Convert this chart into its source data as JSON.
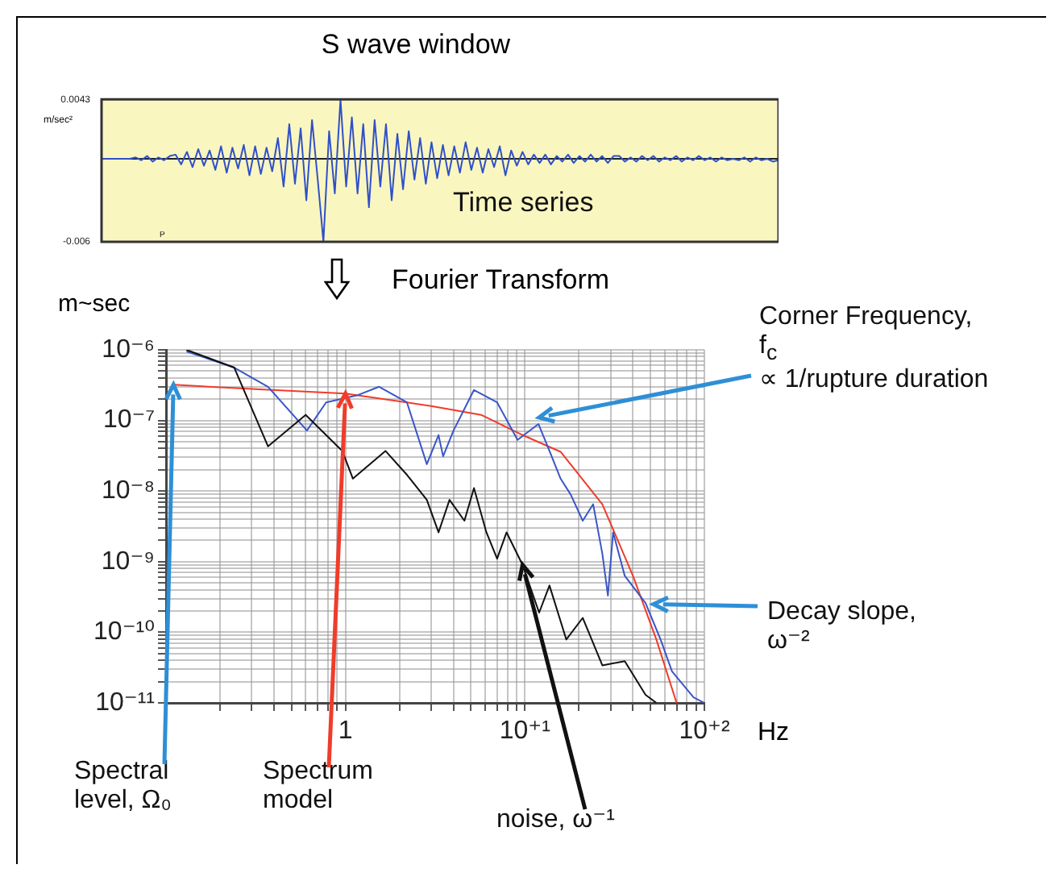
{
  "chart_data": [
    {
      "type": "line",
      "title": "S wave window",
      "ylabel": "m/sec²",
      "categories": [
        null,
        null,
        null,
        null,
        null,
        null,
        null,
        null,
        null,
        null,
        null,
        null,
        null,
        null,
        null,
        null,
        null,
        null,
        null,
        null,
        null,
        null,
        null,
        null,
        null,
        null,
        null,
        null,
        null,
        null,
        null,
        null,
        null,
        null,
        null,
        null,
        null,
        null,
        null,
        null,
        null,
        null,
        null,
        null,
        null,
        null,
        null,
        null,
        null,
        null,
        null,
        null,
        null,
        null,
        null,
        null,
        null,
        null,
        null,
        null,
        null,
        null,
        null,
        null,
        null,
        null,
        null,
        null,
        null,
        null,
        null,
        null,
        null,
        null,
        null,
        null,
        null,
        null,
        null,
        null,
        null,
        null,
        null,
        null,
        null,
        null,
        null,
        null,
        null,
        null,
        null,
        null,
        null,
        null,
        null,
        null,
        null,
        null,
        null,
        null,
        null,
        null,
        null,
        null,
        null,
        null,
        null,
        null,
        null,
        null,
        null,
        null,
        null,
        null,
        null,
        null,
        null,
        null,
        null,
        null
      ],
      "series": [
        {
          "color": "#3050c8",
          "values": [
            0,
            0,
            0,
            0,
            0,
            0,
            0.0001,
            -0.0001,
            0.0002,
            -0.0002,
            0.0001,
            -0.0001,
            0.0002,
            0.0003,
            -0.0004,
            0.0005,
            -0.0006,
            0.0007,
            -0.0005,
            0.0006,
            -0.0008,
            0.0009,
            -0.001,
            0.0008,
            -0.0007,
            0.001,
            -0.0012,
            0.0009,
            -0.0011,
            0.0008,
            -0.0009,
            0.0015,
            -0.002,
            0.0025,
            -0.0018,
            0.0022,
            -0.003,
            0.0028,
            -0.0015,
            -0.006,
            0.002,
            -0.0025,
            0.0043,
            -0.002,
            0.003,
            -0.0025,
            0.0025,
            -0.0035,
            0.0028,
            -0.002,
            0.0025,
            -0.003,
            0.0018,
            -0.0022,
            0.002,
            -0.0015,
            0.0015,
            -0.0018,
            0.0012,
            -0.0014,
            0.001,
            -0.0012,
            0.0009,
            -0.001,
            0.0012,
            -0.0008,
            0.0008,
            -0.001,
            0.0007,
            -0.0006,
            0.0009,
            -0.0012,
            0.0006,
            -0.0005,
            0.0005,
            -0.0004,
            0.0003,
            -0.0003,
            0.0003,
            -0.0004,
            0.0002,
            -0.0002,
            0.0003,
            -0.0003,
            0.0002,
            -0.0002,
            0.0003,
            -0.0002,
            0.0002,
            -0.0003,
            0.0002,
            0.0002,
            -0.0002,
            0.0001,
            -0.0002,
            0.0002,
            -0.0001,
            0.0002,
            -0.0002,
            0.0001,
            -0.0001,
            0.0002,
            -0.0002,
            0.0001,
            -0.0001,
            0.0002,
            -0.0001,
            0.0001,
            -0.0002,
            0.0001,
            -0.0001,
            0,
            -0.0001,
            0.0001,
            -0.0002,
            0.0001,
            -0.0001,
            0,
            -0.0002,
            -0.0001
          ]
        }
      ],
      "ylim": [
        -0.006,
        0.0043
      ],
      "yticks": [
        -0.006,
        0.0043
      ],
      "marker": "none",
      "line_style": "solid",
      "grid": false,
      "legend": false,
      "tick_labels": "y",
      "ref_lines": [
        {
          "axis": "y",
          "value": 0,
          "color": "#202020"
        }
      ],
      "annotations": [
        "Time series",
        "P"
      ]
    },
    {
      "type": "line",
      "title": "Fourier Transform",
      "ylabel": "m~sec",
      "xlabel": "Hz",
      "log": "xy",
      "grid": true,
      "legend": false,
      "marker": "none",
      "line_style": "solid",
      "xlim": [
        0.1,
        100
      ],
      "ylim": [
        1e-11,
        1e-06
      ],
      "xticks": [
        {
          "value": 0.2,
          "label": null
        },
        {
          "value": 0.3,
          "label": null
        },
        {
          "value": 0.4,
          "label": null
        },
        {
          "value": 0.5,
          "label": null
        },
        {
          "value": 0.6,
          "label": null
        },
        {
          "value": 0.7,
          "label": null
        },
        {
          "value": 0.8,
          "label": null
        },
        {
          "value": 0.9,
          "label": null
        },
        1,
        {
          "value": 2,
          "label": null
        },
        {
          "value": 3,
          "label": null
        },
        {
          "value": 4,
          "label": null
        },
        {
          "value": 5,
          "label": null
        },
        {
          "value": 6,
          "label": null
        },
        {
          "value": 7,
          "label": null
        },
        {
          "value": 8,
          "label": null
        },
        {
          "value": 9,
          "label": null
        },
        {
          "value": 10,
          "label": "10⁺¹"
        },
        {
          "value": 20,
          "label": null
        },
        {
          "value": 30,
          "label": null
        },
        {
          "value": 40,
          "label": null
        },
        {
          "value": 50,
          "label": null
        },
        {
          "value": 60,
          "label": null
        },
        {
          "value": 70,
          "label": null
        },
        {
          "value": 80,
          "label": null
        },
        {
          "value": 90,
          "label": null
        },
        {
          "value": 100,
          "label": "10⁺²"
        }
      ],
      "yticks": [
        {
          "value": 1e-11,
          "label": "10⁻¹¹"
        },
        {
          "value": 2e-11,
          "label": null
        },
        {
          "value": 3e-11,
          "label": null
        },
        {
          "value": 4e-11,
          "label": null
        },
        {
          "value": 5e-11,
          "label": null
        },
        {
          "value": 6e-11,
          "label": null
        },
        {
          "value": 7e-11,
          "label": null
        },
        {
          "value": 8e-11,
          "label": null
        },
        {
          "value": 9e-11,
          "label": null
        },
        {
          "value": 1e-10,
          "label": "10⁻¹⁰"
        },
        {
          "value": 2e-10,
          "label": null
        },
        {
          "value": 3e-10,
          "label": null
        },
        {
          "value": 4e-10,
          "label": null
        },
        {
          "value": 5e-10,
          "label": null
        },
        {
          "value": 6e-10,
          "label": null
        },
        {
          "value": 7e-10,
          "label": null
        },
        {
          "value": 8e-10,
          "label": null
        },
        {
          "value": 9e-10,
          "label": null
        },
        {
          "value": 1e-09,
          "label": "10⁻⁹"
        },
        {
          "value": 2e-09,
          "label": null
        },
        {
          "value": 3e-09,
          "label": null
        },
        {
          "value": 4e-09,
          "label": null
        },
        {
          "value": 5e-09,
          "label": null
        },
        {
          "value": 6e-09,
          "label": null
        },
        {
          "value": 7e-09,
          "label": null
        },
        {
          "value": 8e-09,
          "label": null
        },
        {
          "value": 9e-09,
          "label": null
        },
        {
          "value": 1e-08,
          "label": "10⁻⁸"
        },
        {
          "value": 2e-08,
          "label": null
        },
        {
          "value": 3e-08,
          "label": null
        },
        {
          "value": 4e-08,
          "label": null
        },
        {
          "value": 5e-08,
          "label": null
        },
        {
          "value": 6e-08,
          "label": null
        },
        {
          "value": 7e-08,
          "label": null
        },
        {
          "value": 8e-08,
          "label": null
        },
        {
          "value": 9e-08,
          "label": null
        },
        {
          "value": 1e-07,
          "label": "10⁻⁷"
        },
        {
          "value": 2e-07,
          "label": null
        },
        {
          "value": 3e-07,
          "label": null
        },
        {
          "value": 4e-07,
          "label": null
        },
        {
          "value": 5e-07,
          "label": null
        },
        {
          "value": 6e-07,
          "label": null
        },
        {
          "value": 7e-07,
          "label": null
        },
        {
          "value": 8e-07,
          "label": null
        },
        {
          "value": 9e-07,
          "label": null
        },
        {
          "value": 1e-06,
          "label": "10⁻⁶"
        }
      ],
      "series": [
        {
          "color": "#111111",
          "x": [
            0.13,
            0.24,
            0.37,
            0.6,
            0.96,
            1.1,
            1.67,
            2.2,
            2.84,
            3.3,
            3.8,
            4.6,
            5.2,
            6.1,
            7,
            7.9,
            9.7,
            12,
            13.7,
            17,
            21,
            27,
            36,
            47,
            54
          ],
          "values": [
            1e-06,
            5.6e-07,
            4.3e-08,
            1.2e-07,
            3.7e-08,
            1.5e-08,
            3.7e-08,
            1.7e-08,
            7.5e-09,
            2.6e-09,
            7.5e-09,
            3.8e-09,
            1.1e-08,
            2.6e-09,
            1.1e-09,
            2.6e-09,
            9e-10,
            1.9e-10,
            4.6e-10,
            7.9e-11,
            1.6e-10,
            3.4e-11,
            3.9e-11,
            1.3e-11,
            1e-11
          ]
        },
        {
          "color": "#3a56c8",
          "x": [
            0.13,
            0.24,
            0.37,
            0.61,
            0.78,
            1.18,
            1.54,
            2.2,
            2.84,
            3.3,
            3.5,
            4,
            5.2,
            7,
            9.1,
            11.9,
            13.7,
            15.8,
            18,
            21,
            24,
            27,
            29,
            31,
            36,
            47,
            57,
            66,
            87,
            100
          ],
          "values": [
            9.5e-07,
            5.6e-07,
            3e-07,
            7.2e-08,
            1.8e-07,
            2.3e-07,
            3e-07,
            1.8e-07,
            2.4e-08,
            6.2e-08,
            3.1e-08,
            7.2e-08,
            2.7e-07,
            1.8e-07,
            5.3e-08,
            8.9e-08,
            3.7e-08,
            1.5e-08,
            8.9e-09,
            3.8e-09,
            6.5e-09,
            1.3e-09,
            3.3e-10,
            2.6e-09,
            6.3e-10,
            2.6e-10,
            7.9e-11,
            2.8e-11,
            1.2e-11,
            1e-11
          ]
        },
        {
          "color": "#f03c2a",
          "x": [
            0.11,
            0.3,
            1,
            3,
            5.7,
            10,
            15.8,
            27,
            40,
            54,
            70
          ],
          "values": [
            3.2e-07,
            2.8e-07,
            2.4e-07,
            1.6e-07,
            1.2e-07,
            6e-08,
            3.6e-08,
            6.5e-09,
            6.3e-10,
            7.9e-11,
            1e-11
          ]
        }
      ],
      "annotations": [
        {
          "text": "Corner Frequency,\nf$_{c}$\n∝ 1/rupture duration",
          "x": 12,
          "y": 1.1e-07
        },
        {
          "text": "Decay slope,\nω⁻²",
          "x": 52,
          "y": 2.5e-10
        },
        {
          "text": "Spectral\nlevel, Ω₀",
          "x": 0.11,
          "y": 3.2e-07
        },
        {
          "text": "Spectrum\nmodel",
          "x": 1,
          "y": 2.4e-07
        },
        {
          "text": "noise, ω⁻¹",
          "x": 9.7,
          "y": 9e-10
        }
      ]
    }
  ]
}
